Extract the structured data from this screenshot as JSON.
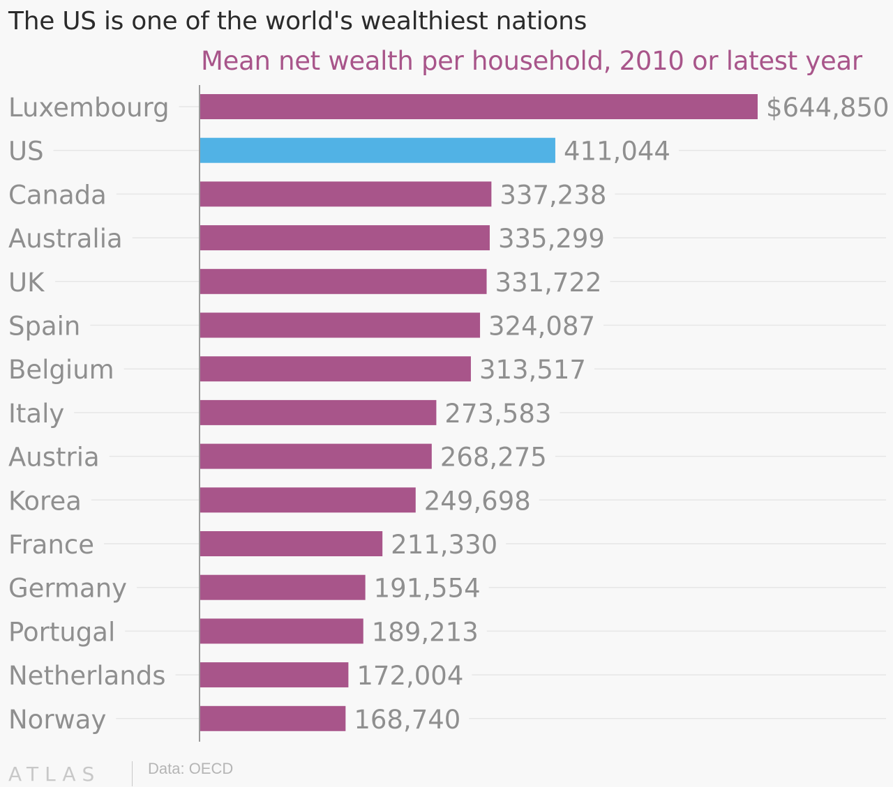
{
  "chart_data": {
    "type": "bar",
    "orientation": "horizontal",
    "title": "The US is one of the world's wealthiest nations",
    "subtitle": "Mean net wealth per household, 2010 or latest year",
    "categories": [
      "Luxembourg",
      "US",
      "Canada",
      "Australia",
      "UK",
      "Spain",
      "Belgium",
      "Italy",
      "Austria",
      "Korea",
      "France",
      "Germany",
      "Portugal",
      "Netherlands",
      "Norway"
    ],
    "values": [
      644850,
      411044,
      337238,
      335299,
      331722,
      324087,
      313517,
      273583,
      268275,
      249698,
      211330,
      191554,
      189213,
      172004,
      168740
    ],
    "value_labels": [
      "$644,850",
      "411,044",
      "337,238",
      "335,299",
      "331,722",
      "324,087",
      "313,517",
      "273,583",
      "268,275",
      "249,698",
      "211,330",
      "191,554",
      "189,213",
      "172,004",
      "168,740"
    ],
    "highlight_category": "US",
    "colors": {
      "default_bar": "#a8558a",
      "highlight_bar": "#51b2e5",
      "label_text": "#8f8f8f",
      "gridline": "#e6e6e6",
      "axis": "#9a9a9a"
    },
    "xlim": [
      0,
      644850
    ],
    "grid": true,
    "legend": "none"
  },
  "footer": {
    "logo": "ATLAS",
    "source": "Data: OECD"
  }
}
